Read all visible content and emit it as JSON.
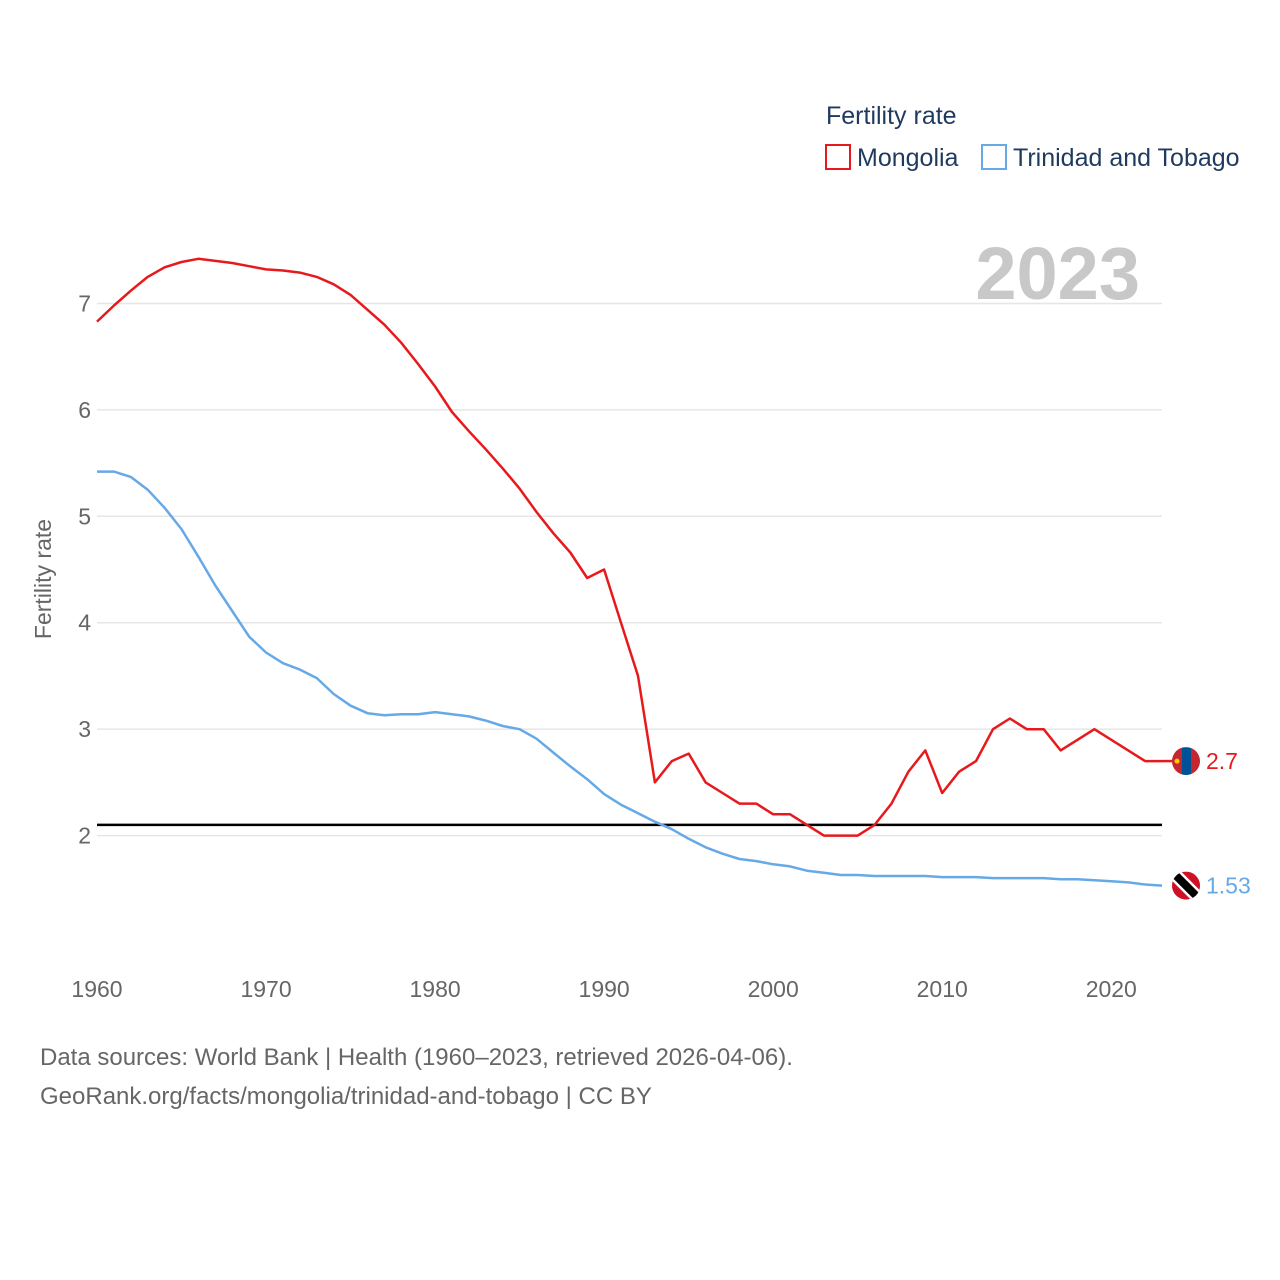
{
  "chart_data": {
    "type": "line",
    "title": "Fertility rate",
    "ylabel": "Fertility rate",
    "xlabel": "",
    "year_label": "2023",
    "xlim": [
      1960,
      2023
    ],
    "ylim": [
      1.0,
      7.85
    ],
    "x_ticks": [
      1960,
      1970,
      1980,
      1990,
      2000,
      2010,
      2020
    ],
    "y_ticks": [
      2,
      3,
      4,
      5,
      6,
      7
    ],
    "reference_line": 2.1,
    "legend_position": "top-right",
    "years": [
      1960,
      1961,
      1962,
      1963,
      1964,
      1965,
      1966,
      1967,
      1968,
      1969,
      1970,
      1971,
      1972,
      1973,
      1974,
      1975,
      1976,
      1977,
      1978,
      1979,
      1980,
      1981,
      1982,
      1983,
      1984,
      1985,
      1986,
      1987,
      1988,
      1989,
      1990,
      1991,
      1992,
      1993,
      1994,
      1995,
      1996,
      1997,
      1998,
      1999,
      2000,
      2001,
      2002,
      2003,
      2004,
      2005,
      2006,
      2007,
      2008,
      2009,
      2010,
      2011,
      2012,
      2013,
      2014,
      2015,
      2016,
      2017,
      2018,
      2019,
      2020,
      2021,
      2022,
      2023
    ],
    "series": [
      {
        "name": "Mongolia",
        "color": "#e8191c",
        "end_label": "2.7",
        "flag": "mongolia",
        "values": [
          6.83,
          6.98,
          7.12,
          7.25,
          7.34,
          7.39,
          7.42,
          7.4,
          7.38,
          7.35,
          7.32,
          7.31,
          7.29,
          7.25,
          7.18,
          7.08,
          6.94,
          6.8,
          6.63,
          6.43,
          6.22,
          5.98,
          5.8,
          5.63,
          5.45,
          5.26,
          5.04,
          4.84,
          4.66,
          4.42,
          4.5,
          4.0,
          3.5,
          2.5,
          2.7,
          2.77,
          2.5,
          2.4,
          2.3,
          2.3,
          2.2,
          2.2,
          2.1,
          2.0,
          2.0,
          2.0,
          2.1,
          2.3,
          2.6,
          2.8,
          2.4,
          2.6,
          2.7,
          3.0,
          3.1,
          3.0,
          3.0,
          2.8,
          2.9,
          3.0,
          2.9,
          2.8,
          2.7,
          2.7
        ]
      },
      {
        "name": "Trinidad and Tobago",
        "color": "#66a9e6",
        "end_label": "1.53",
        "flag": "trinidad-and-tobago",
        "values": [
          5.42,
          5.42,
          5.37,
          5.25,
          5.08,
          4.88,
          4.62,
          4.35,
          4.11,
          3.87,
          3.72,
          3.62,
          3.56,
          3.48,
          3.33,
          3.22,
          3.15,
          3.13,
          3.14,
          3.14,
          3.16,
          3.14,
          3.12,
          3.08,
          3.03,
          3.0,
          2.91,
          2.78,
          2.65,
          2.53,
          2.39,
          2.29,
          2.21,
          2.13,
          2.06,
          1.97,
          1.89,
          1.83,
          1.78,
          1.76,
          1.73,
          1.71,
          1.67,
          1.65,
          1.63,
          1.63,
          1.62,
          1.62,
          1.62,
          1.62,
          1.61,
          1.61,
          1.61,
          1.6,
          1.6,
          1.6,
          1.6,
          1.59,
          1.59,
          1.58,
          1.57,
          1.56,
          1.54,
          1.53
        ]
      }
    ]
  },
  "footer": {
    "source_line": "Data sources: World Bank | Health (1960–2023, retrieved 2026-04-06).",
    "url_line": "GeoRank.org/facts/mongolia/trinidad-and-tobago | CC BY"
  }
}
